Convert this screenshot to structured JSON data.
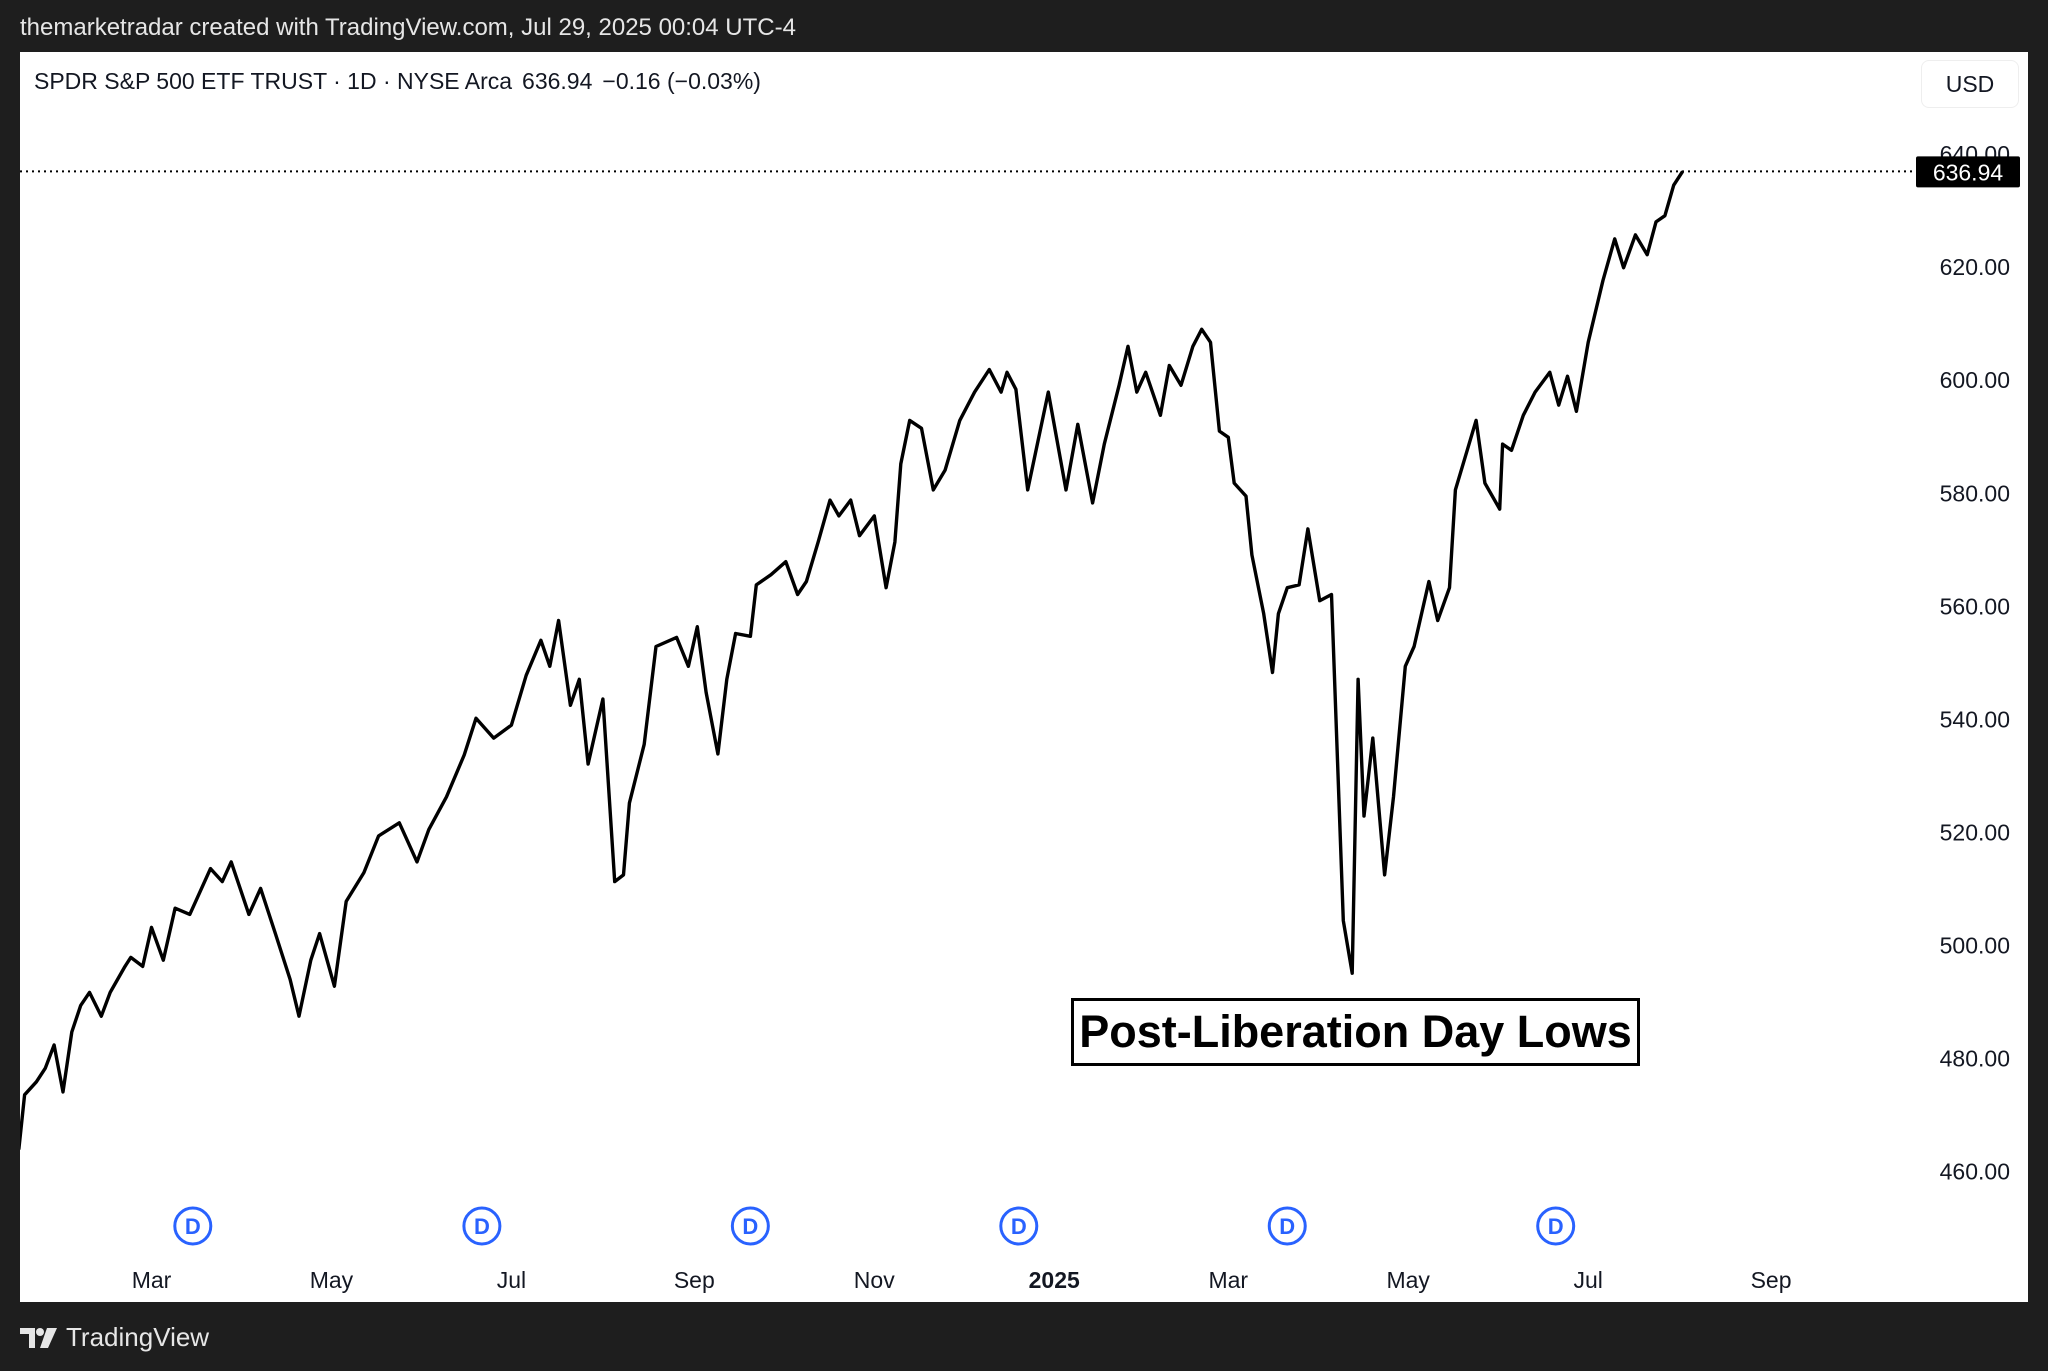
{
  "header": {
    "attribution": "themarketradar created with TradingView.com, Jul 29, 2025 00:04 UTC-4"
  },
  "legend": {
    "symbol": "SPDR S&P 500 ETF TRUST · 1D · NYSE Arca",
    "last": "636.94",
    "change": "−0.16 (−0.03%)"
  },
  "currency_button": "USD",
  "footer": {
    "brand": "TradingView",
    "logo_icon": "tradingview-logo-icon"
  },
  "colors": {
    "line": "#000000",
    "dividend": "#2962ff",
    "background": "#ffffff",
    "frame": "#1e1e1e"
  },
  "chart_data": {
    "type": "line",
    "title": "",
    "ylim": [
      460,
      640
    ],
    "y_ticks": [
      "460.00",
      "480.00",
      "500.00",
      "520.00",
      "540.00",
      "560.00",
      "580.00",
      "600.00",
      "620.00",
      "640.00"
    ],
    "x_ticks": [
      {
        "label": "Mar",
        "date": "2024-03-01",
        "bold": false
      },
      {
        "label": "May",
        "date": "2024-05-01",
        "bold": false
      },
      {
        "label": "Jul",
        "date": "2024-07-01",
        "bold": false
      },
      {
        "label": "Sep",
        "date": "2024-09-01",
        "bold": false
      },
      {
        "label": "Nov",
        "date": "2024-11-01",
        "bold": false
      },
      {
        "label": "2025",
        "date": "2025-01-01",
        "bold": true
      },
      {
        "label": "Mar",
        "date": "2025-03-01",
        "bold": false
      },
      {
        "label": "May",
        "date": "2025-05-01",
        "bold": false
      },
      {
        "label": "Jul",
        "date": "2025-07-01",
        "bold": false
      },
      {
        "label": "Sep",
        "date": "2025-09-01",
        "bold": false
      }
    ],
    "last_price_label": "636.94",
    "last_price": 636.94,
    "dividend_markers": [
      {
        "label": "D",
        "date": "2024-03-15"
      },
      {
        "label": "D",
        "date": "2024-06-21"
      },
      {
        "label": "D",
        "date": "2024-09-20"
      },
      {
        "label": "D",
        "date": "2024-12-20"
      },
      {
        "label": "D",
        "date": "2025-03-21"
      },
      {
        "label": "D",
        "date": "2025-06-20"
      }
    ],
    "annotation": "Post-Liberation Day Lows",
    "points": [
      [
        "2024-01-16",
        463.9
      ],
      [
        "2024-01-18",
        473.6
      ],
      [
        "2024-01-22",
        475.9
      ],
      [
        "2024-01-25",
        478.3
      ],
      [
        "2024-01-28",
        482.4
      ],
      [
        "2024-01-31",
        474.1
      ],
      [
        "2024-02-03",
        484.7
      ],
      [
        "2024-02-06",
        489.4
      ],
      [
        "2024-02-09",
        491.7
      ],
      [
        "2024-02-13",
        487.5
      ],
      [
        "2024-02-16",
        491.7
      ],
      [
        "2024-02-21",
        496.3
      ],
      [
        "2024-02-23",
        497.9
      ],
      [
        "2024-02-27",
        496.3
      ],
      [
        "2024-03-01",
        503.2
      ],
      [
        "2024-03-05",
        497.4
      ],
      [
        "2024-03-09",
        506.6
      ],
      [
        "2024-03-14",
        505.5
      ],
      [
        "2024-03-21",
        513.6
      ],
      [
        "2024-03-25",
        511.3
      ],
      [
        "2024-03-28",
        514.8
      ],
      [
        "2024-04-03",
        505.5
      ],
      [
        "2024-04-07",
        510.1
      ],
      [
        "2024-04-12",
        502.1
      ],
      [
        "2024-04-17",
        494.0
      ],
      [
        "2024-04-20",
        487.5
      ],
      [
        "2024-04-24",
        497.4
      ],
      [
        "2024-04-27",
        502.1
      ],
      [
        "2024-05-02",
        492.8
      ],
      [
        "2024-05-06",
        507.8
      ],
      [
        "2024-05-12",
        512.9
      ],
      [
        "2024-05-17",
        519.4
      ],
      [
        "2024-05-24",
        521.7
      ],
      [
        "2024-05-30",
        514.8
      ],
      [
        "2024-06-03",
        520.5
      ],
      [
        "2024-06-09",
        526.3
      ],
      [
        "2024-06-15",
        533.7
      ],
      [
        "2024-06-19",
        540.2
      ],
      [
        "2024-06-25",
        536.7
      ],
      [
        "2024-07-01",
        539.0
      ],
      [
        "2024-07-06",
        547.8
      ],
      [
        "2024-07-11",
        554.0
      ],
      [
        "2024-07-14",
        549.4
      ],
      [
        "2024-07-17",
        557.5
      ],
      [
        "2024-07-21",
        542.5
      ],
      [
        "2024-07-24",
        547.1
      ],
      [
        "2024-07-27",
        532.1
      ],
      [
        "2024-08-01",
        543.6
      ],
      [
        "2024-08-05",
        511.3
      ],
      [
        "2024-08-08",
        512.5
      ],
      [
        "2024-08-10",
        525.2
      ],
      [
        "2024-08-15",
        535.6
      ],
      [
        "2024-08-19",
        552.9
      ],
      [
        "2024-08-26",
        554.5
      ],
      [
        "2024-08-30",
        549.4
      ],
      [
        "2024-09-02",
        556.4
      ],
      [
        "2024-09-05",
        544.8
      ],
      [
        "2024-09-09",
        533.9
      ],
      [
        "2024-09-12",
        547.1
      ],
      [
        "2024-09-15",
        555.2
      ],
      [
        "2024-09-20",
        554.7
      ],
      [
        "2024-09-22",
        563.8
      ],
      [
        "2024-09-27",
        565.6
      ],
      [
        "2024-10-02",
        567.9
      ],
      [
        "2024-10-06",
        562.1
      ],
      [
        "2024-10-09",
        564.4
      ],
      [
        "2024-10-13",
        571.4
      ],
      [
        "2024-10-17",
        578.8
      ],
      [
        "2024-10-20",
        576.0
      ],
      [
        "2024-10-24",
        578.8
      ],
      [
        "2024-10-27",
        572.5
      ],
      [
        "2024-11-01",
        576.0
      ],
      [
        "2024-11-05",
        563.3
      ],
      [
        "2024-11-08",
        571.4
      ],
      [
        "2024-11-10",
        585.2
      ],
      [
        "2024-11-13",
        592.9
      ],
      [
        "2024-11-17",
        591.5
      ],
      [
        "2024-11-21",
        580.6
      ],
      [
        "2024-11-25",
        584.1
      ],
      [
        "2024-11-30",
        592.9
      ],
      [
        "2024-12-05",
        597.9
      ],
      [
        "2024-12-10",
        601.9
      ],
      [
        "2024-12-14",
        597.9
      ],
      [
        "2024-12-16",
        601.4
      ],
      [
        "2024-12-19",
        598.4
      ],
      [
        "2024-12-23",
        580.6
      ],
      [
        "2024-12-30",
        597.9
      ],
      [
        "2025-01-05",
        580.6
      ],
      [
        "2025-01-09",
        592.2
      ],
      [
        "2025-01-14",
        578.3
      ],
      [
        "2025-01-18",
        588.7
      ],
      [
        "2025-01-23",
        599.1
      ],
      [
        "2025-01-26",
        606.0
      ],
      [
        "2025-01-29",
        597.9
      ],
      [
        "2025-02-01",
        601.4
      ],
      [
        "2025-02-06",
        593.8
      ],
      [
        "2025-02-09",
        602.6
      ],
      [
        "2025-02-13",
        599.1
      ],
      [
        "2025-02-17",
        606.0
      ],
      [
        "2025-02-20",
        609.0
      ],
      [
        "2025-02-23",
        606.7
      ],
      [
        "2025-02-26",
        591.0
      ],
      [
        "2025-03-01",
        589.9
      ],
      [
        "2025-03-03",
        581.8
      ],
      [
        "2025-03-07",
        579.5
      ],
      [
        "2025-03-09",
        569.1
      ],
      [
        "2025-03-13",
        558.7
      ],
      [
        "2025-03-16",
        548.3
      ],
      [
        "2025-03-18",
        558.7
      ],
      [
        "2025-03-21",
        563.3
      ],
      [
        "2025-03-25",
        563.8
      ],
      [
        "2025-03-28",
        573.7
      ],
      [
        "2025-04-01",
        561.0
      ],
      [
        "2025-04-05",
        562.1
      ],
      [
        "2025-04-09",
        504.4
      ],
      [
        "2025-04-12",
        495.1
      ],
      [
        "2025-04-14",
        547.1
      ],
      [
        "2025-04-16",
        522.9
      ],
      [
        "2025-04-19",
        536.7
      ],
      [
        "2025-04-23",
        512.5
      ],
      [
        "2025-04-26",
        526.3
      ],
      [
        "2025-04-30",
        549.4
      ],
      [
        "2025-05-03",
        552.9
      ],
      [
        "2025-05-08",
        564.4
      ],
      [
        "2025-05-11",
        557.5
      ],
      [
        "2025-05-15",
        563.3
      ],
      [
        "2025-05-17",
        580.6
      ],
      [
        "2025-05-21",
        587.6
      ],
      [
        "2025-05-24",
        592.9
      ],
      [
        "2025-05-27",
        581.8
      ],
      [
        "2025-06-01",
        577.2
      ],
      [
        "2025-06-02",
        588.7
      ],
      [
        "2025-06-05",
        587.6
      ],
      [
        "2025-06-09",
        593.8
      ],
      [
        "2025-06-13",
        597.9
      ],
      [
        "2025-06-18",
        601.4
      ],
      [
        "2025-06-21",
        595.6
      ],
      [
        "2025-06-24",
        600.7
      ],
      [
        "2025-06-27",
        594.5
      ],
      [
        "2025-07-01",
        606.7
      ],
      [
        "2025-07-06",
        617.6
      ],
      [
        "2025-07-10",
        625.0
      ],
      [
        "2025-07-13",
        619.9
      ],
      [
        "2025-07-17",
        625.7
      ],
      [
        "2025-07-21",
        622.2
      ],
      [
        "2025-07-24",
        628.0
      ],
      [
        "2025-07-27",
        629.1
      ],
      [
        "2025-07-30",
        634.5
      ],
      [
        "2025-08-02",
        636.94
      ]
    ]
  }
}
